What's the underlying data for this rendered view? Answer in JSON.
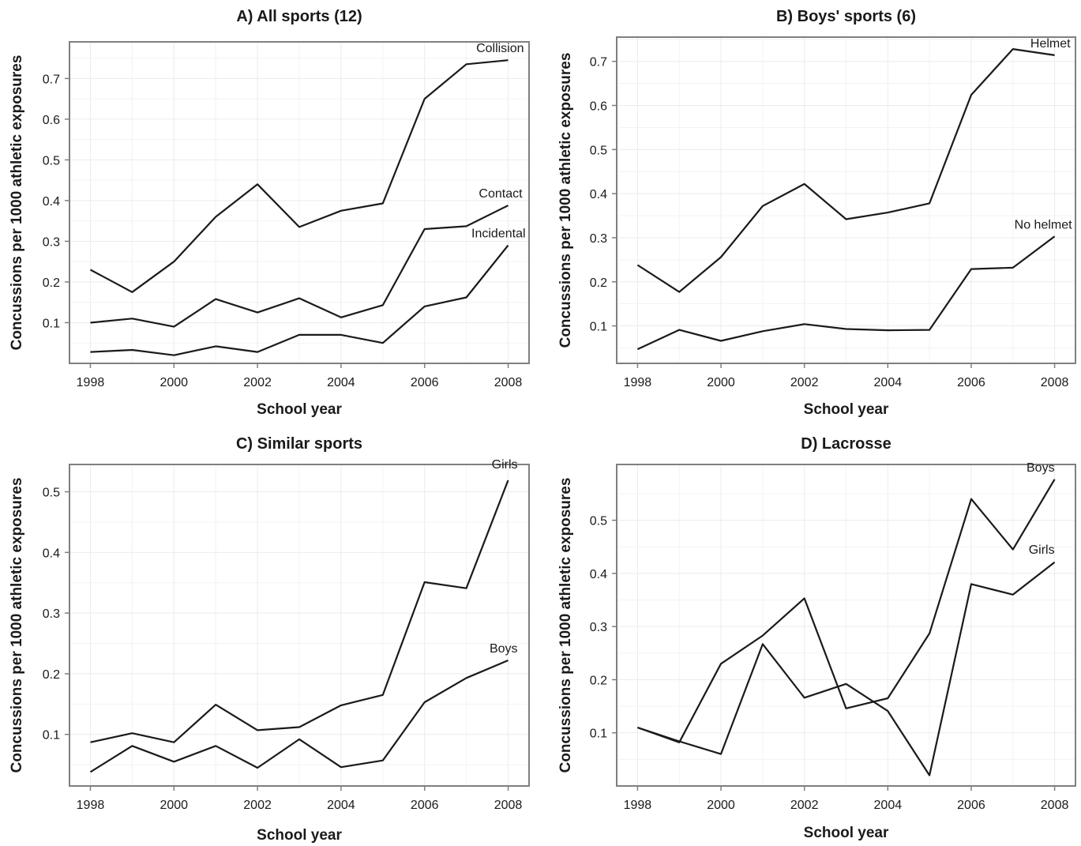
{
  "chart_data": [
    {
      "type": "line",
      "title": "A) All sports (12)",
      "xlabel": "School year",
      "ylabel": "Concussions per 1000 athletic exposures",
      "xlim": [
        1997.5,
        2008.5
      ],
      "ylim": [
        0.0,
        0.79
      ],
      "xticks": [
        "1998",
        "2000",
        "2002",
        "2004",
        "2006",
        "2008"
      ],
      "yticks": [
        "0.1",
        "0.2",
        "0.3",
        "0.4",
        "0.5",
        "0.6",
        "0.7"
      ],
      "grid": true,
      "x": [
        1998,
        1999,
        2000,
        2001,
        2002,
        2003,
        2004,
        2005,
        2006,
        2007,
        2008
      ],
      "series": [
        {
          "name": "Collision",
          "values": [
            0.23,
            0.175,
            0.25,
            0.36,
            0.44,
            0.335,
            0.375,
            0.393,
            0.65,
            0.735,
            0.745
          ]
        },
        {
          "name": "Contact",
          "values": [
            0.1,
            0.11,
            0.09,
            0.158,
            0.125,
            0.16,
            0.113,
            0.143,
            0.33,
            0.337,
            0.388
          ]
        },
        {
          "name": "Incidental",
          "values": [
            0.028,
            0.033,
            0.02,
            0.042,
            0.028,
            0.07,
            0.07,
            0.05,
            0.14,
            0.162,
            0.29
          ]
        }
      ]
    },
    {
      "type": "line",
      "title": "B) Boys' sports (6)",
      "xlabel": "School year",
      "ylabel": "Concussions per 1000 athletic exposures",
      "xlim": [
        1997.5,
        2008.5
      ],
      "ylim": [
        0.015,
        0.755
      ],
      "xticks": [
        "1998",
        "2000",
        "2002",
        "2004",
        "2006",
        "2008"
      ],
      "yticks": [
        "0.1",
        "0.2",
        "0.3",
        "0.4",
        "0.5",
        "0.6",
        "0.7"
      ],
      "grid": true,
      "x": [
        1998,
        1999,
        2000,
        2001,
        2002,
        2003,
        2004,
        2005,
        2006,
        2007,
        2008
      ],
      "series": [
        {
          "name": "Helmet",
          "values": [
            0.238,
            0.177,
            0.256,
            0.372,
            0.422,
            0.342,
            0.357,
            0.378,
            0.624,
            0.728,
            0.714
          ]
        },
        {
          "name": "No helmet",
          "values": [
            0.047,
            0.091,
            0.066,
            0.088,
            0.104,
            0.093,
            0.09,
            0.091,
            0.229,
            0.232,
            0.303
          ]
        }
      ]
    },
    {
      "type": "line",
      "title": "C) Similar sports",
      "xlabel": "School year",
      "ylabel": "Concussions per 1000 athletic exposures",
      "xlim": [
        1997.5,
        2008.5
      ],
      "ylim": [
        0.015,
        0.545
      ],
      "xticks": [
        "1998",
        "2000",
        "2002",
        "2004",
        "2006",
        "2008"
      ],
      "yticks": [
        "0.1",
        "0.2",
        "0.3",
        "0.4",
        "0.5"
      ],
      "grid": true,
      "x": [
        1998,
        1999,
        2000,
        2001,
        2002,
        2003,
        2004,
        2005,
        2006,
        2007,
        2008
      ],
      "series": [
        {
          "name": "Girls",
          "values": [
            0.087,
            0.102,
            0.087,
            0.149,
            0.107,
            0.112,
            0.148,
            0.165,
            0.351,
            0.341,
            0.519
          ]
        },
        {
          "name": "Boys",
          "values": [
            0.038,
            0.081,
            0.055,
            0.081,
            0.045,
            0.092,
            0.046,
            0.057,
            0.153,
            0.193,
            0.222
          ]
        }
      ]
    },
    {
      "type": "line",
      "title": "D) Lacrosse",
      "xlabel": "School year",
      "ylabel": "Concussions per 1000 athletic exposures",
      "xlim": [
        1997.5,
        2008.5
      ],
      "ylim": [
        0.0,
        0.605
      ],
      "xticks": [
        "1998",
        "2000",
        "2002",
        "2004",
        "2006",
        "2008"
      ],
      "yticks": [
        "0.1",
        "0.2",
        "0.3",
        "0.4",
        "0.5"
      ],
      "grid": true,
      "x": [
        1998,
        1999,
        2000,
        2001,
        2002,
        2003,
        2004,
        2005,
        2006,
        2007,
        2008
      ],
      "series": [
        {
          "name": "Boys",
          "values": [
            0.11,
            0.082,
            0.23,
            0.283,
            0.353,
            0.146,
            0.165,
            0.287,
            0.54,
            0.445,
            0.577
          ]
        },
        {
          "name": "Girls",
          "values": [
            0.11,
            0.084,
            0.06,
            0.267,
            0.166,
            0.192,
            0.141,
            0.02,
            0.38,
            0.36,
            0.421
          ]
        }
      ]
    }
  ]
}
